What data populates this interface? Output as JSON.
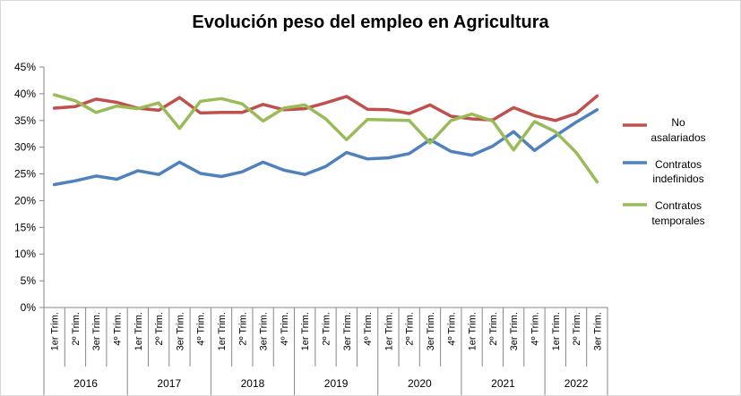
{
  "chart_data": {
    "type": "line",
    "title": "Evolución peso del empleo en Agricultura",
    "xlabel": "",
    "ylabel": "",
    "ylim": [
      0,
      45
    ],
    "yticks": [
      "0%",
      "5%",
      "10%",
      "15%",
      "20%",
      "25%",
      "30%",
      "35%",
      "40%",
      "45%"
    ],
    "grid": false,
    "legend_position": "right",
    "years": [
      {
        "label": "2016",
        "span": 4
      },
      {
        "label": "2017",
        "span": 4
      },
      {
        "label": "2018",
        "span": 4
      },
      {
        "label": "2019",
        "span": 4
      },
      {
        "label": "2020",
        "span": 4
      },
      {
        "label": "2021",
        "span": 4
      },
      {
        "label": "2022",
        "span": 3
      }
    ],
    "categories": [
      "1er Trim.",
      "2º Trim.",
      "3er Trim.",
      "4º Trim.",
      "1er Trim.",
      "2º Trim.",
      "3er Trim.",
      "4º Trim.",
      "1er Trim.",
      "2º Trim.",
      "3er Trim.",
      "4º Trim.",
      "1er Trim.",
      "2º Trim.",
      "3er Trim.",
      "4º Trim.",
      "1er Trim.",
      "2º Trim.",
      "3er Trim.",
      "4º Trim.",
      "1er Trim.",
      "2º Trim.",
      "3er Trim.",
      "4º Trim.",
      "1er Trim.",
      "2º Trim.",
      "3er Trim."
    ],
    "series": [
      {
        "name": "No asalariados",
        "legend_lines": [
          "No",
          "asalariados"
        ],
        "color": "#c0504d",
        "values": [
          37.3,
          37.6,
          39.0,
          38.4,
          37.3,
          36.9,
          39.3,
          36.4,
          36.5,
          36.5,
          38.0,
          37.0,
          37.2,
          38.3,
          39.5,
          37.1,
          37.0,
          36.3,
          37.9,
          35.8,
          35.3,
          35.1,
          37.4,
          35.9,
          35.0,
          36.3,
          39.6
        ]
      },
      {
        "name": "Contratos indefinidos",
        "legend_lines": [
          "Contratos",
          "indefinidos"
        ],
        "color": "#4f81bd",
        "values": [
          23.0,
          23.7,
          24.6,
          24.0,
          25.6,
          24.9,
          27.2,
          25.1,
          24.5,
          25.4,
          27.2,
          25.7,
          24.9,
          26.4,
          29.0,
          27.8,
          28.0,
          28.8,
          31.4,
          29.2,
          28.5,
          30.2,
          32.9,
          29.4,
          32.1,
          34.7,
          37.0
        ]
      },
      {
        "name": "Contratos temporales",
        "legend_lines": [
          "Contratos",
          "temporales"
        ],
        "color": "#9bbb59",
        "values": [
          39.8,
          38.7,
          36.5,
          37.7,
          37.2,
          38.3,
          33.5,
          38.6,
          39.1,
          38.1,
          34.9,
          37.3,
          37.9,
          35.3,
          31.4,
          35.2,
          35.1,
          35.0,
          30.8,
          35.0,
          36.2,
          34.9,
          29.5,
          34.8,
          32.9,
          29.0,
          23.5
        ]
      }
    ]
  }
}
